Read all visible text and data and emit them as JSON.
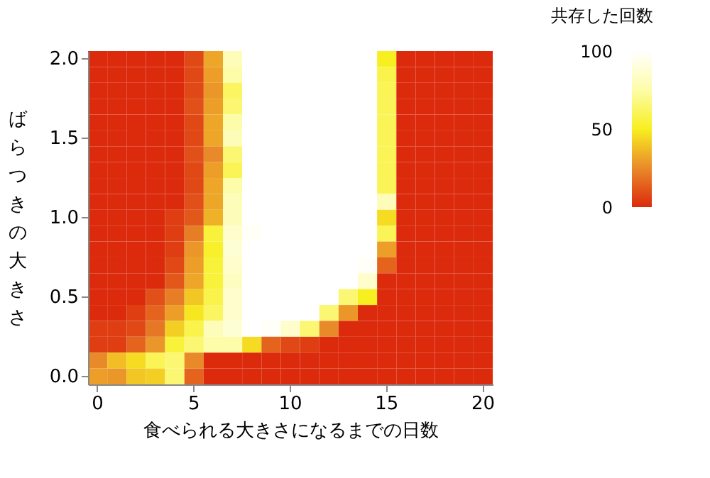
{
  "chart_data": {
    "type": "heatmap",
    "xlabel": "食べられる大きさになるまでの日数",
    "ylabel": "ばらつきの大きさ",
    "clabel": "共存した回数",
    "categories": [
      "0",
      null,
      null,
      null,
      null,
      "5",
      null,
      null,
      null,
      null,
      "10",
      null,
      null,
      null,
      null,
      "15",
      null,
      null,
      null,
      null,
      "20"
    ],
    "y_categories": [
      "2.0",
      null,
      null,
      null,
      null,
      "1.5",
      null,
      null,
      null,
      null,
      "1.0",
      null,
      null,
      null,
      null,
      "0.5",
      null,
      null,
      null,
      null,
      "0.0"
    ],
    "cells": [
      [
        0,
        0,
        0,
        0,
        0,
        8,
        32,
        80,
        100,
        100,
        100,
        100,
        100,
        100,
        100,
        50,
        0,
        0,
        0,
        0,
        0
      ],
      [
        0,
        0,
        0,
        0,
        0,
        8,
        30,
        75,
        100,
        100,
        100,
        100,
        100,
        100,
        100,
        58,
        0,
        0,
        0,
        0,
        0
      ],
      [
        0,
        0,
        0,
        0,
        0,
        8,
        28,
        62,
        100,
        100,
        100,
        100,
        100,
        100,
        100,
        60,
        0,
        0,
        0,
        0,
        0
      ],
      [
        0,
        0,
        0,
        0,
        0,
        10,
        30,
        65,
        100,
        100,
        100,
        100,
        100,
        100,
        100,
        60,
        0,
        0,
        0,
        0,
        0
      ],
      [
        0,
        0,
        0,
        0,
        0,
        8,
        32,
        75,
        100,
        100,
        100,
        100,
        100,
        100,
        100,
        60,
        0,
        0,
        0,
        0,
        0
      ],
      [
        0,
        0,
        0,
        0,
        0,
        8,
        32,
        80,
        100,
        100,
        100,
        100,
        100,
        100,
        100,
        60,
        0,
        0,
        0,
        0,
        0
      ],
      [
        0,
        0,
        0,
        0,
        0,
        10,
        25,
        65,
        100,
        100,
        100,
        100,
        100,
        100,
        100,
        60,
        0,
        0,
        0,
        0,
        0
      ],
      [
        0,
        0,
        0,
        0,
        0,
        8,
        30,
        60,
        100,
        100,
        100,
        100,
        100,
        100,
        100,
        60,
        0,
        0,
        0,
        0,
        0
      ],
      [
        0,
        0,
        0,
        0,
        0,
        8,
        32,
        75,
        100,
        100,
        100,
        100,
        100,
        100,
        100,
        60,
        0,
        0,
        0,
        0,
        0
      ],
      [
        0,
        0,
        0,
        0,
        0,
        10,
        32,
        80,
        100,
        100,
        100,
        100,
        100,
        100,
        100,
        80,
        0,
        0,
        0,
        0,
        0
      ],
      [
        0,
        0,
        0,
        0,
        5,
        12,
        35,
        80,
        100,
        100,
        100,
        100,
        100,
        100,
        100,
        45,
        0,
        0,
        0,
        0,
        0
      ],
      [
        0,
        0,
        0,
        0,
        5,
        22,
        55,
        85,
        98,
        100,
        100,
        100,
        100,
        100,
        100,
        60,
        0,
        0,
        0,
        0,
        0
      ],
      [
        0,
        0,
        0,
        0,
        5,
        28,
        52,
        88,
        100,
        100,
        100,
        100,
        100,
        100,
        100,
        30,
        0,
        0,
        0,
        0,
        0
      ],
      [
        0,
        0,
        0,
        0,
        8,
        30,
        55,
        85,
        100,
        100,
        100,
        100,
        100,
        100,
        98,
        15,
        0,
        0,
        0,
        0,
        0
      ],
      [
        0,
        0,
        0,
        0,
        12,
        32,
        55,
        82,
        100,
        100,
        100,
        100,
        100,
        100,
        85,
        0,
        0,
        0,
        0,
        0,
        0
      ],
      [
        0,
        0,
        0,
        10,
        22,
        40,
        58,
        85,
        100,
        100,
        100,
        100,
        100,
        65,
        50,
        0,
        0,
        0,
        0,
        0,
        0
      ],
      [
        0,
        0,
        5,
        15,
        30,
        48,
        62,
        85,
        100,
        100,
        100,
        100,
        65,
        28,
        0,
        0,
        0,
        0,
        0,
        0,
        0
      ],
      [
        5,
        5,
        8,
        20,
        42,
        58,
        80,
        88,
        100,
        98,
        85,
        65,
        25,
        0,
        0,
        0,
        0,
        0,
        0,
        0,
        0
      ],
      [
        5,
        5,
        15,
        28,
        55,
        65,
        75,
        75,
        45,
        15,
        8,
        5,
        0,
        0,
        0,
        0,
        0,
        0,
        0,
        0,
        0
      ],
      [
        25,
        38,
        45,
        60,
        65,
        25,
        0,
        0,
        0,
        0,
        0,
        0,
        0,
        0,
        0,
        0,
        0,
        0,
        0,
        0,
        0
      ],
      [
        30,
        28,
        40,
        42,
        65,
        15,
        0,
        0,
        0,
        0,
        0,
        0,
        0,
        0,
        0,
        0,
        0,
        0,
        0,
        0,
        0
      ]
    ],
    "clim": [
      0,
      100
    ],
    "cticks": [
      0,
      50,
      100
    ]
  }
}
